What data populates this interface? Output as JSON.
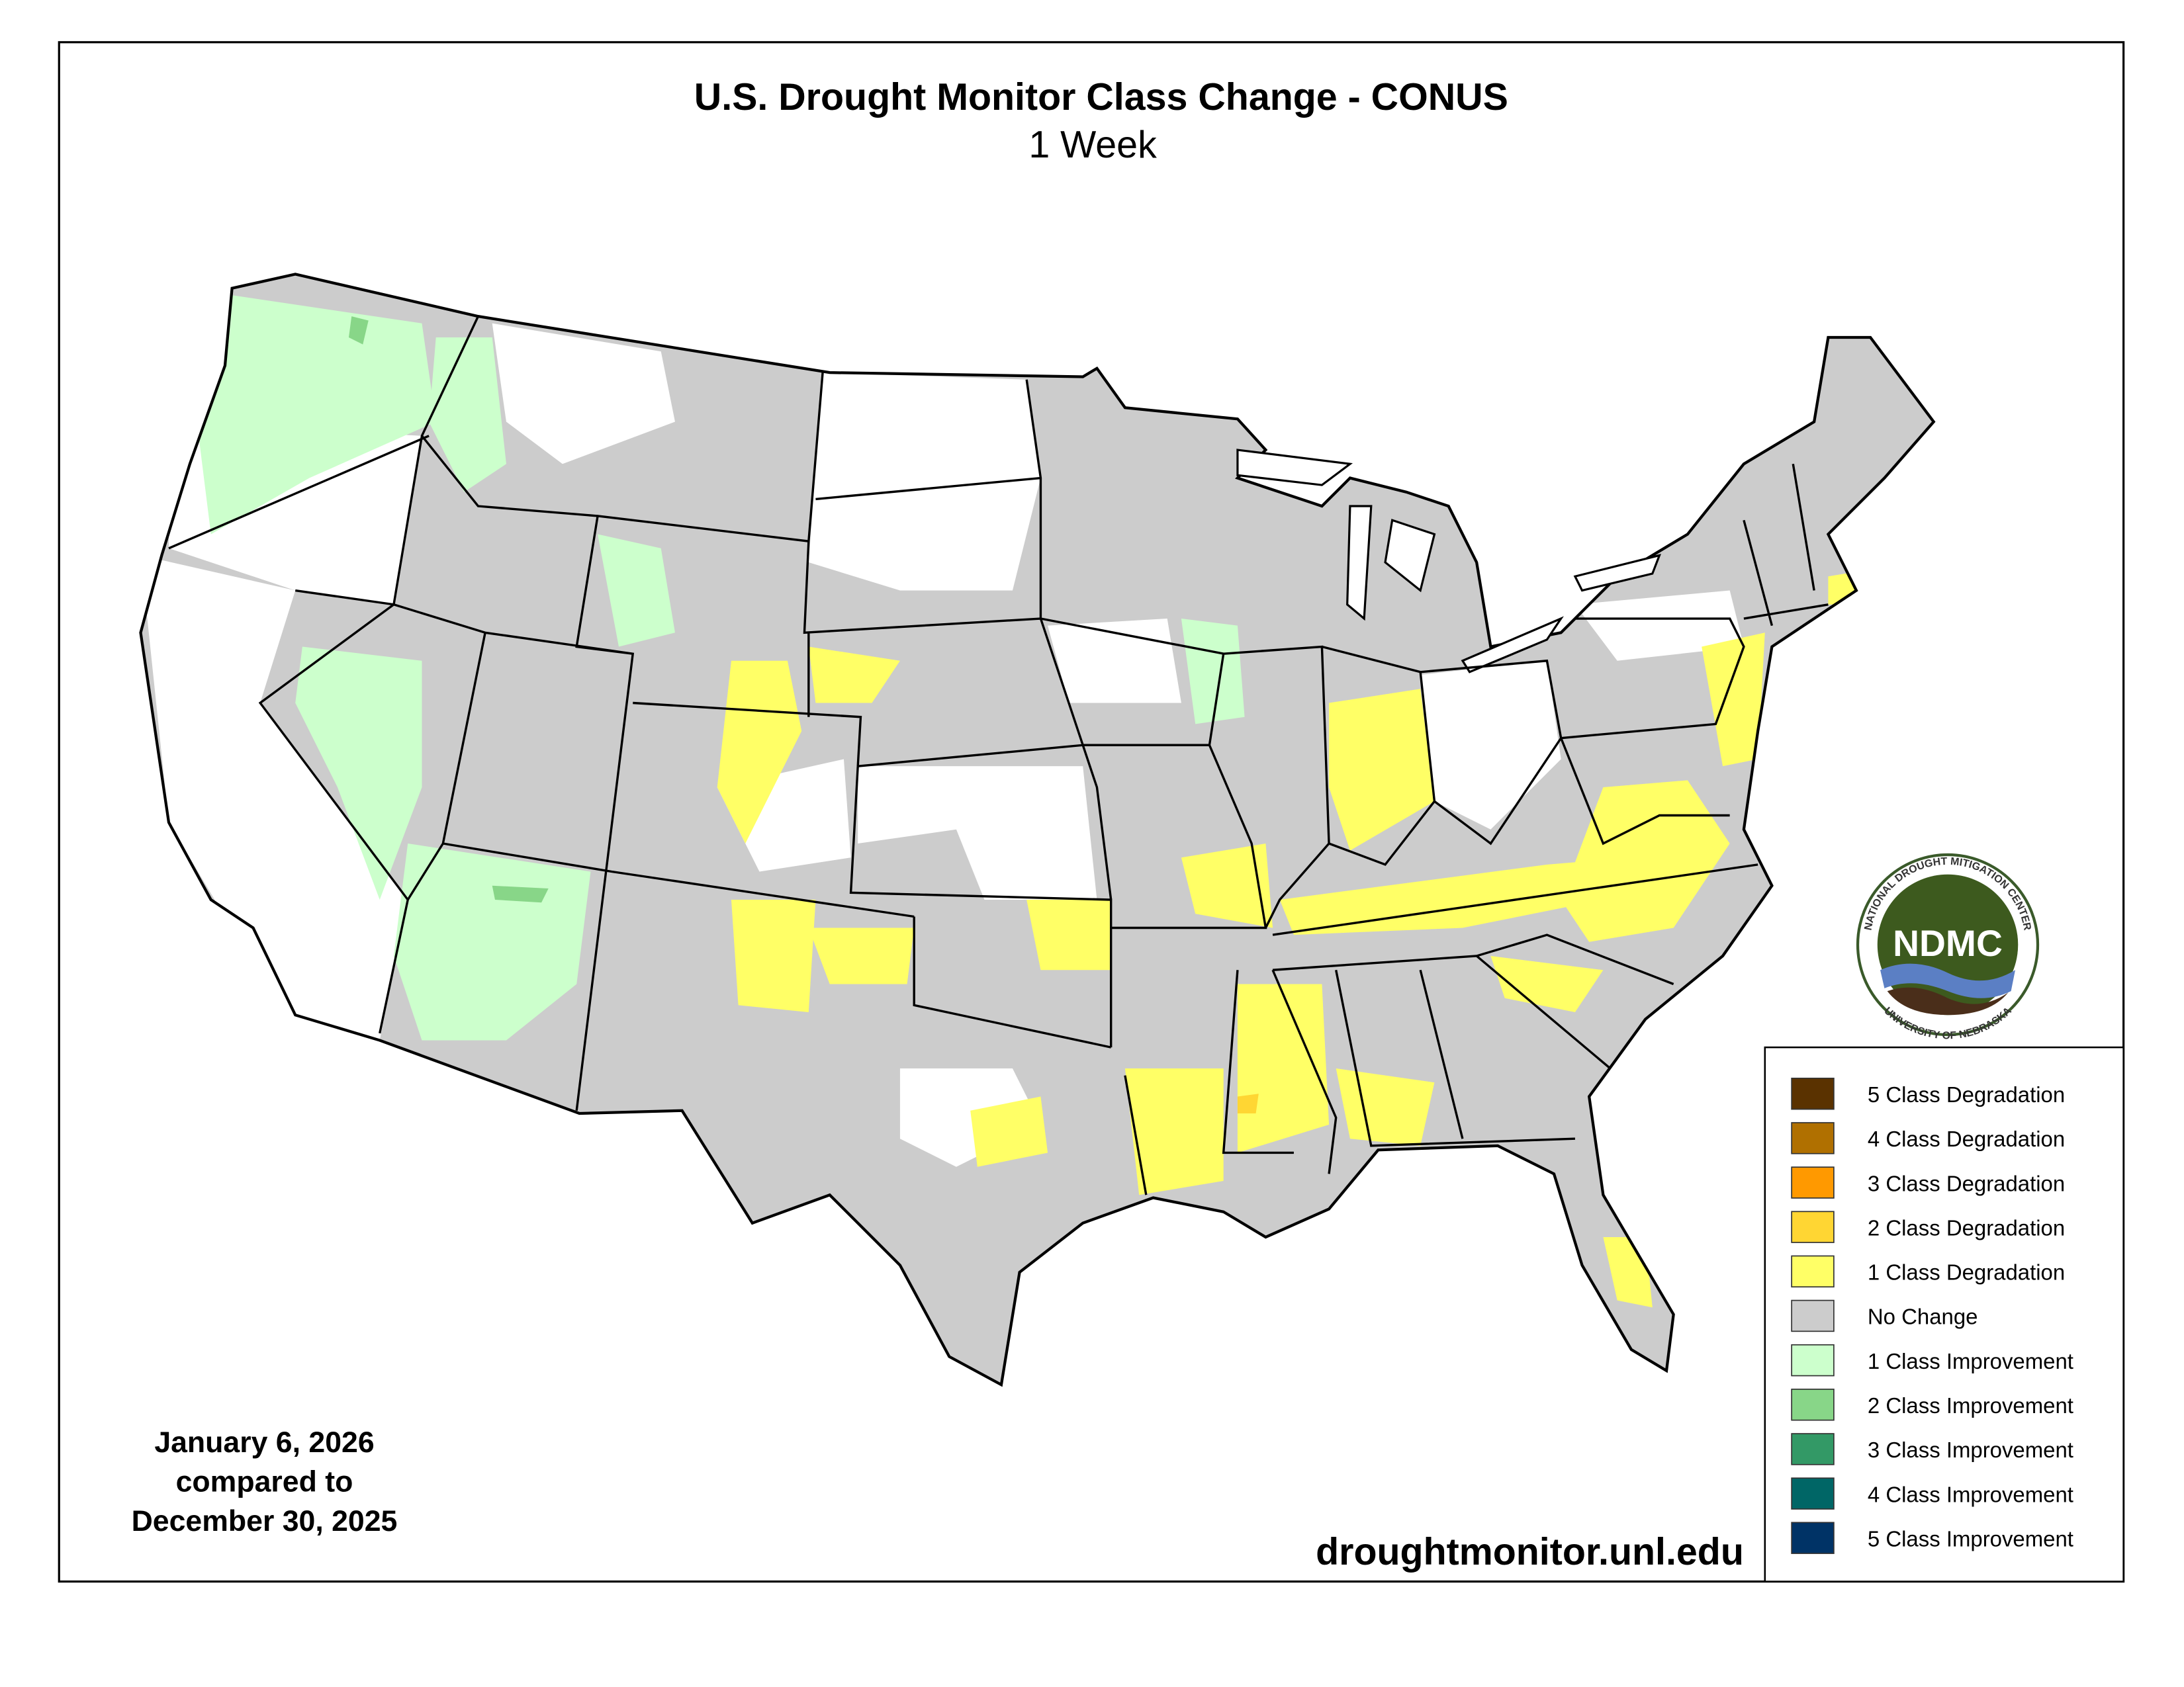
{
  "header": {
    "title": "U.S. Drought Monitor Class Change - CONUS",
    "subtitle": "1 Week"
  },
  "legend": {
    "items": [
      {
        "label": "5 Class Degradation",
        "color": "#5a3200"
      },
      {
        "label": "4 Class Degradation",
        "color": "#b07000"
      },
      {
        "label": "3 Class Degradation",
        "color": "#ff9900"
      },
      {
        "label": "2 Class Degradation",
        "color": "#ffd633"
      },
      {
        "label": "1 Class Degradation",
        "color": "#ffff66"
      },
      {
        "label": "No Change",
        "color": "#cccccc"
      },
      {
        "label": "1 Class Improvement",
        "color": "#ccffcc"
      },
      {
        "label": "2 Class Improvement",
        "color": "#88d688"
      },
      {
        "label": "3 Class Improvement",
        "color": "#339966"
      },
      {
        "label": "4 Class Improvement",
        "color": "#006666"
      },
      {
        "label": "5 Class Improvement",
        "color": "#003366"
      }
    ]
  },
  "footer": {
    "date_lines": [
      "January 6, 2026",
      "compared to",
      "December 30, 2025"
    ],
    "url": "droughtmonitor.unl.edu"
  },
  "logo": {
    "abbreviation": "NDMC",
    "top_text": "NATIONAL DROUGHT MITIGATION CENTER",
    "bottom_text": "UNIVERSITY OF NEBRASKA"
  }
}
